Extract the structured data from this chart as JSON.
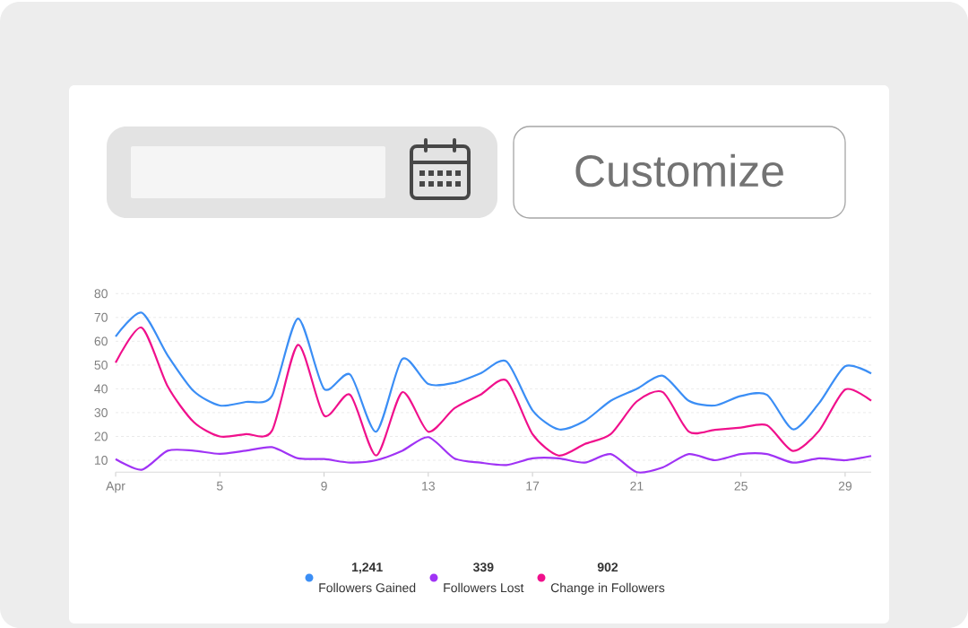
{
  "chart_data": {
    "type": "line",
    "x": [
      1,
      2,
      3,
      4,
      5,
      6,
      7,
      8,
      9,
      10,
      11,
      12,
      13,
      14,
      15,
      16,
      17,
      18,
      19,
      20,
      21,
      22,
      23,
      24,
      25,
      26,
      27,
      28,
      29,
      30
    ],
    "series": [
      {
        "name": "Followers Gained",
        "color": "#3b8ef5",
        "values": [
          62,
          72,
          54,
          39,
          33,
          34.5,
          37,
          69.5,
          40,
          46,
          22,
          52.5,
          42,
          42.5,
          46.5,
          51.5,
          31,
          23,
          26.5,
          35,
          40,
          45.5,
          35,
          33,
          37,
          37.5,
          23,
          34,
          49.5,
          46.5
        ]
      },
      {
        "name": "Followers Lost",
        "color": "#a033f5",
        "values": [
          10.5,
          6,
          14,
          14,
          12.7,
          14,
          15.5,
          10.8,
          10.5,
          9,
          10,
          14,
          19.7,
          10.8,
          9,
          8,
          10.8,
          10.8,
          9,
          12.6,
          5,
          7,
          12.6,
          10,
          12.6,
          12.6,
          9,
          10.8,
          10,
          11.8
        ]
      },
      {
        "name": "Change in Followers",
        "color": "#f0108c",
        "values": [
          51,
          65.7,
          41,
          26,
          20,
          21,
          22.4,
          58.5,
          28.8,
          37.5,
          12,
          38.6,
          22,
          31.8,
          37.5,
          43.5,
          21,
          12,
          16.8,
          21,
          34.7,
          38.6,
          22,
          22.8,
          23.7,
          24.7,
          13.9,
          22.4,
          39.7,
          35
        ]
      }
    ],
    "xlim": [
      1,
      30
    ],
    "xticks": [
      {
        "value": 1,
        "label": "Apr"
      },
      5,
      9,
      13,
      17,
      21,
      25,
      29
    ],
    "ylim": [
      5,
      80
    ],
    "yticks": [
      10,
      20,
      30,
      40,
      50,
      60,
      70,
      80
    ],
    "grid": "y",
    "legend": "bottom",
    "marker": "none",
    "line_style": "solid",
    "annotations": [
      "Customize",
      "1,241",
      "339",
      "902"
    ]
  }
}
